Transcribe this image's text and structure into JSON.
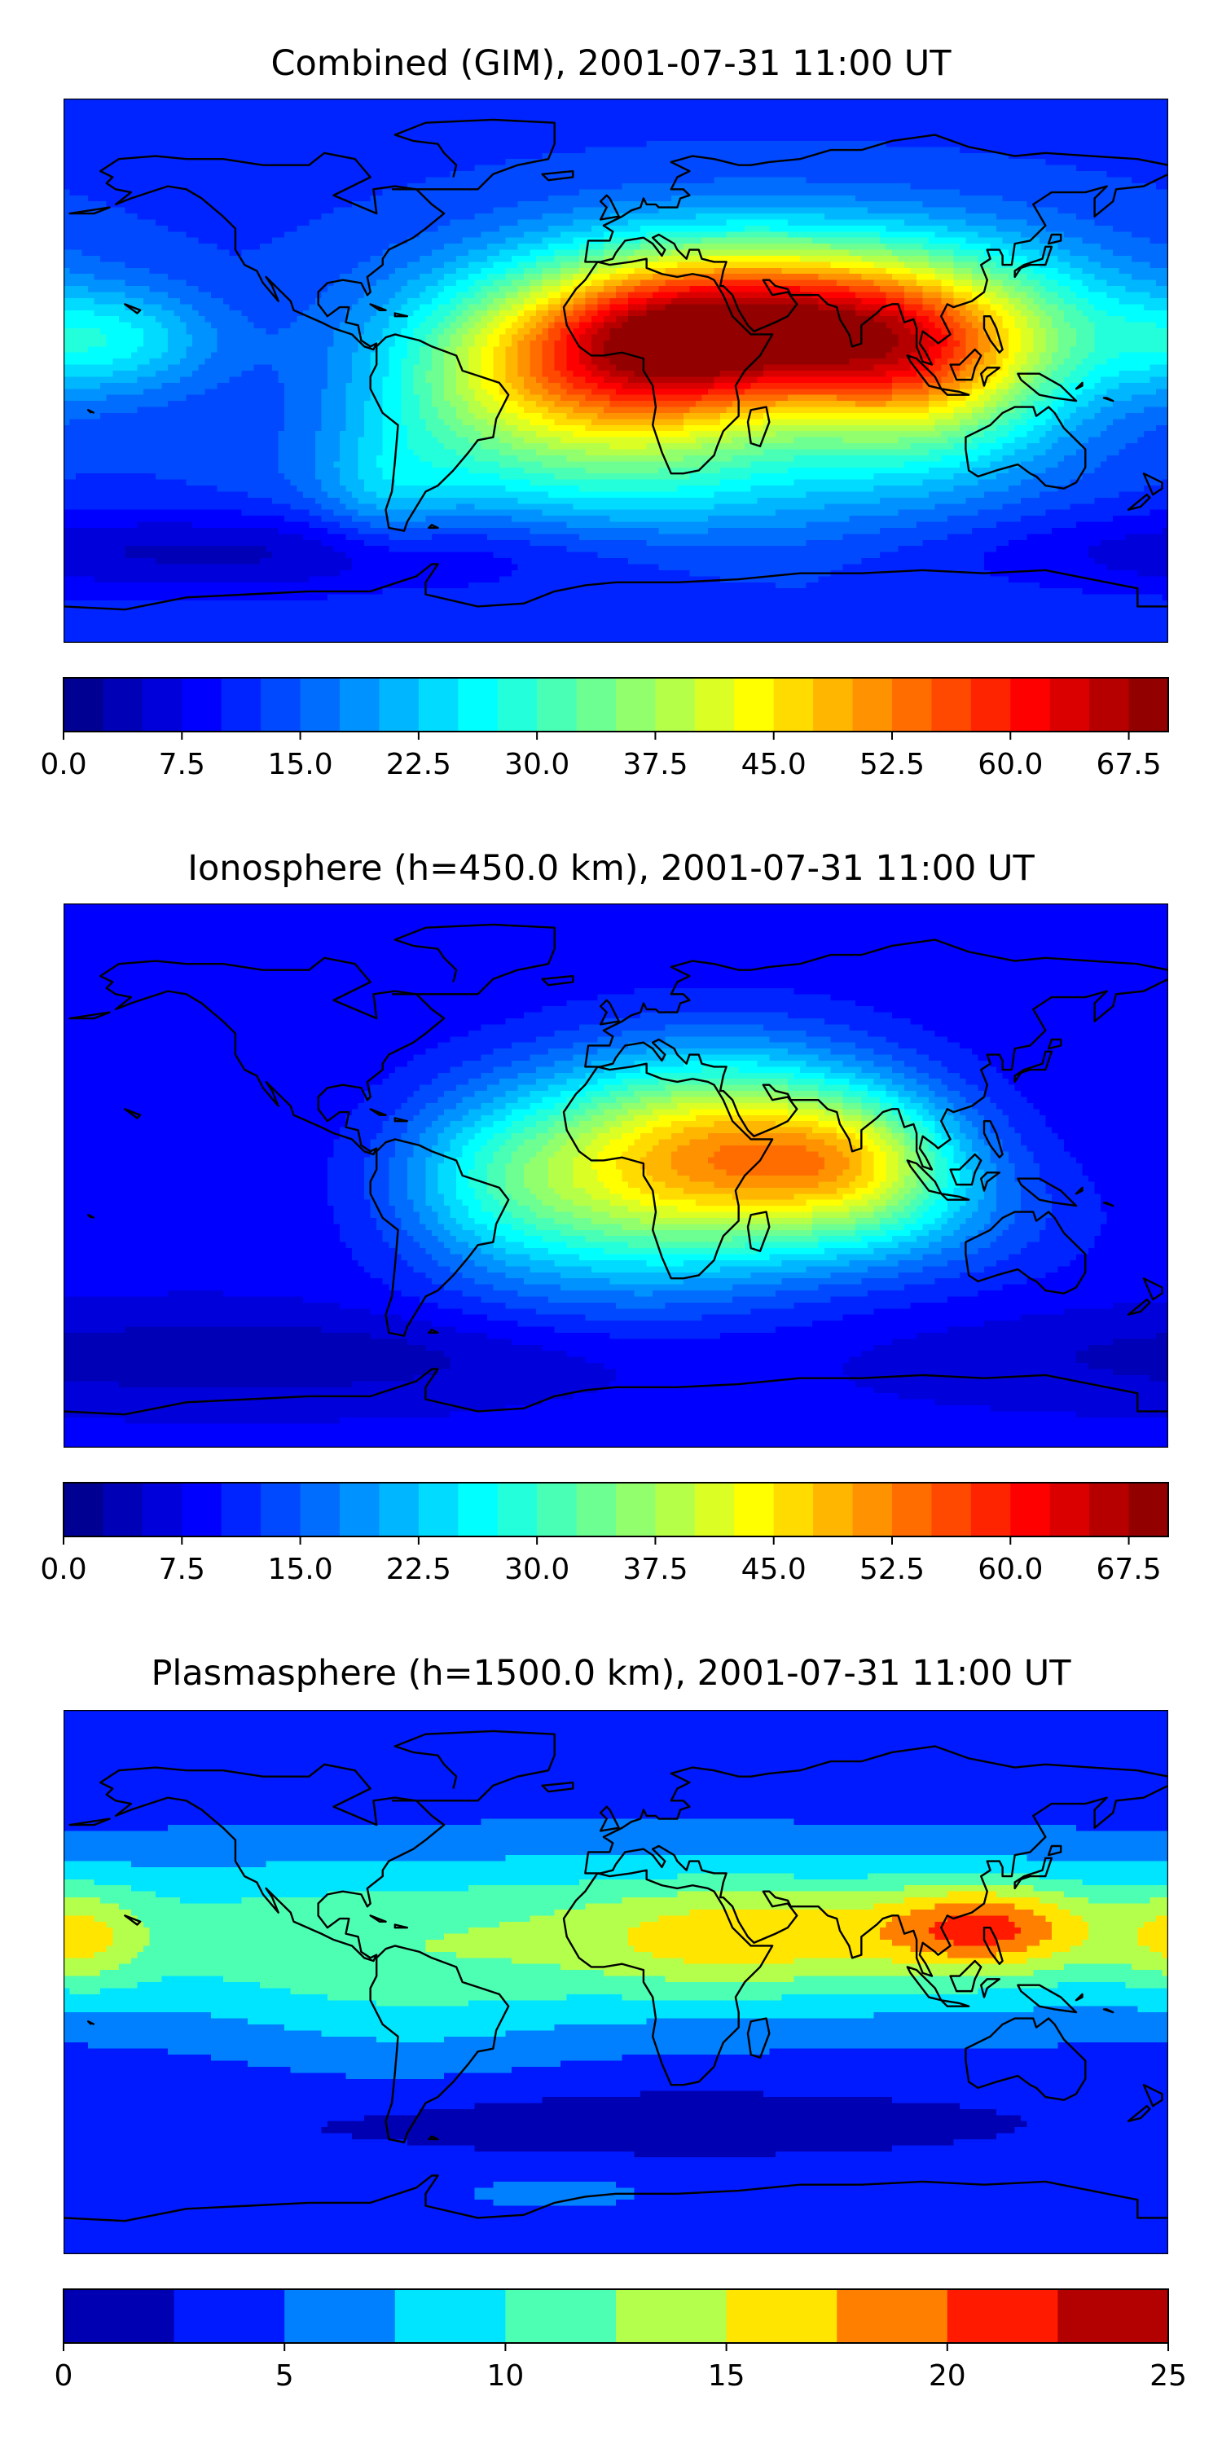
{
  "panels": [
    {
      "title": "Combined (GIM), 2001-07-31 11:00 UT",
      "colorbar": {
        "ticks": [
          "0.0",
          "7.5",
          "15.0",
          "22.5",
          "30.0",
          "37.5",
          "45.0",
          "52.5",
          "60.0",
          "67.5"
        ],
        "tick_values": [
          0,
          7.5,
          15,
          22.5,
          30,
          37.5,
          45,
          52.5,
          60,
          67.5
        ],
        "range": [
          0,
          70
        ],
        "levels": 28,
        "colormap": "jet"
      },
      "field": {
        "background": 12,
        "blobs": [
          {
            "lon": 55,
            "lat": 15,
            "sx": 60,
            "sy": 20,
            "amp": 52
          },
          {
            "lon": 10,
            "lat": 0,
            "sx": 30,
            "sy": 22,
            "amp": 22
          },
          {
            "lon": -40,
            "lat": -5,
            "sx": 30,
            "sy": 20,
            "amp": 16
          },
          {
            "lon": 100,
            "lat": -5,
            "sx": 30,
            "sy": 20,
            "amp": 18
          },
          {
            "lon": 10,
            "lat": -35,
            "sx": 70,
            "sy": 18,
            "amp": 10
          },
          {
            "lon": -165,
            "lat": 10,
            "sx": 25,
            "sy": 12,
            "amp": 12
          },
          {
            "lon": -75,
            "lat": -40,
            "sx": 15,
            "sy": 15,
            "amp": 6
          },
          {
            "lon": -120,
            "lat": -60,
            "sx": 90,
            "sy": 10,
            "amp": -8
          }
        ]
      }
    },
    {
      "title": "Ionosphere  (h=450.0 km), 2001-07-31 11:00 UT",
      "colorbar": {
        "ticks": [
          "0.0",
          "7.5",
          "15.0",
          "22.5",
          "30.0",
          "37.5",
          "45.0",
          "52.5",
          "60.0",
          "67.5"
        ],
        "tick_values": [
          0,
          7.5,
          15,
          22.5,
          30,
          37.5,
          45,
          52.5,
          60,
          67.5
        ],
        "range": [
          0,
          70
        ],
        "levels": 28,
        "colormap": "jet"
      },
      "field": {
        "background": 8,
        "blobs": [
          {
            "lon": 35,
            "lat": 10,
            "sx": 40,
            "sy": 22,
            "amp": 33
          },
          {
            "lon": 80,
            "lat": 5,
            "sx": 25,
            "sy": 15,
            "amp": 18
          },
          {
            "lon": 0,
            "lat": -10,
            "sx": 40,
            "sy": 25,
            "amp": 14
          },
          {
            "lon": -40,
            "lat": 0,
            "sx": 25,
            "sy": 20,
            "amp": 10
          },
          {
            "lon": 90,
            "lat": -15,
            "sx": 40,
            "sy": 15,
            "amp": 8
          },
          {
            "lon": -120,
            "lat": -60,
            "sx": 90,
            "sy": 10,
            "amp": -5
          }
        ]
      }
    },
    {
      "title": "Plasmasphere (h=1500.0 km), 2001-07-31 11:00 UT",
      "colorbar": {
        "ticks": [
          "0",
          "5",
          "10",
          "15",
          "20",
          "25"
        ],
        "tick_values": [
          0,
          5,
          10,
          15,
          20,
          25
        ],
        "range": [
          0,
          25
        ],
        "levels": 10,
        "colormap": "jet"
      },
      "field": {
        "background": 3,
        "blobs": [
          {
            "lon": 0,
            "lat": 15,
            "sx": 250,
            "sy": 22,
            "amp": 9
          },
          {
            "lon": 120,
            "lat": 18,
            "sx": 25,
            "sy": 10,
            "amp": 10
          },
          {
            "lon": -175,
            "lat": 15,
            "sx": 15,
            "sy": 12,
            "amp": 6
          },
          {
            "lon": 40,
            "lat": 15,
            "sx": 35,
            "sy": 12,
            "amp": 5
          },
          {
            "lon": -70,
            "lat": -15,
            "sx": 40,
            "sy": 20,
            "amp": 2
          },
          {
            "lon": -20,
            "lat": -70,
            "sx": 30,
            "sy": 5,
            "amp": 3
          },
          {
            "lon": 0,
            "lat": -45,
            "sx": 90,
            "sy": 8,
            "amp": -2
          }
        ]
      }
    }
  ],
  "coastline_color": "#000000"
}
